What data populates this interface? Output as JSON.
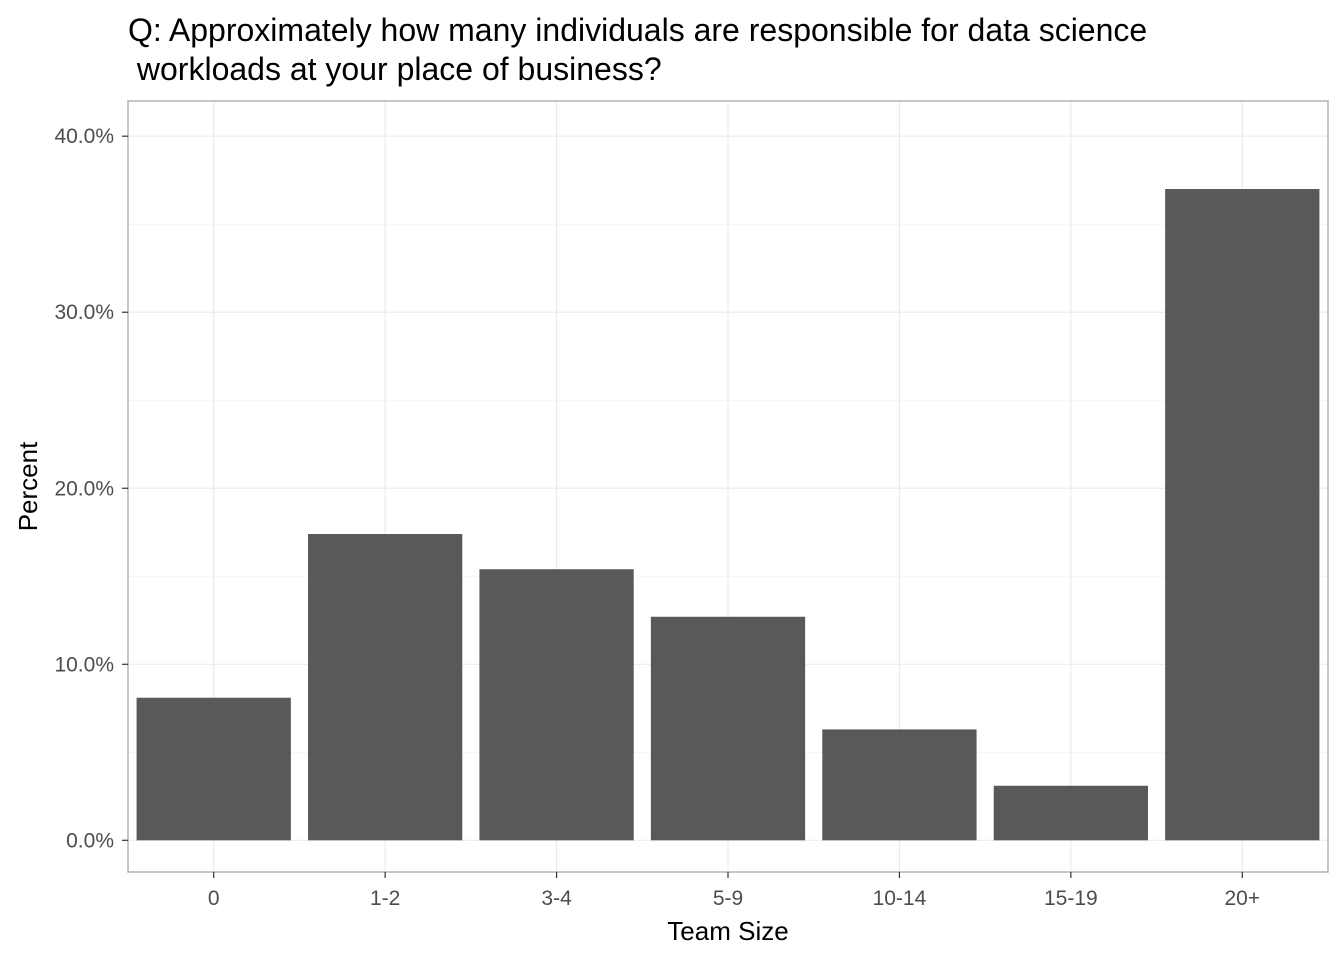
{
  "chart_data": {
    "type": "bar",
    "title_lines": [
      "Q: Approximately how many individuals are responsible for data science",
      " workloads at your place of business?"
    ],
    "xlabel": "Team Size",
    "ylabel": "Percent",
    "categories": [
      "0",
      "1-2",
      "3-4",
      "5-9",
      "10-14",
      "15-19",
      "20+"
    ],
    "values": [
      8.1,
      17.4,
      15.4,
      12.7,
      6.3,
      3.1,
      37.0
    ],
    "ylim": [
      -1.8,
      42.0
    ],
    "yticks": [
      0,
      10,
      20,
      30,
      40
    ],
    "ytick_labels": [
      "0.0%",
      "10.0%",
      "20.0%",
      "30.0%",
      "40.0%"
    ],
    "grid": true,
    "bar_color": "#595959"
  }
}
